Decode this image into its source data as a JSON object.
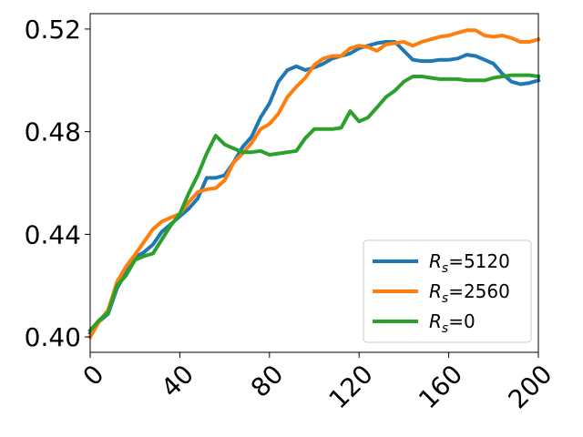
{
  "chart_data": {
    "type": "line",
    "title": "",
    "xlabel": "",
    "ylabel": "",
    "xlim": [
      0,
      200
    ],
    "ylim": [
      0.394,
      0.526
    ],
    "xticks": [
      0,
      40,
      80,
      120,
      160,
      200
    ],
    "xtick_labels": [
      "0",
      "40",
      "80",
      "120",
      "160",
      "200"
    ],
    "yticks": [
      0.4,
      0.44,
      0.48,
      0.52
    ],
    "ytick_labels": [
      "0.40",
      "0.44",
      "0.48",
      "0.52"
    ],
    "grid": false,
    "legend_position": "lower-right",
    "series": [
      {
        "name": "R_s=5120",
        "legend_main": "R",
        "legend_sub": "s",
        "legend_value": "=5120",
        "color": "#1f77b4",
        "x": [
          0,
          4,
          8,
          12,
          16,
          20,
          24,
          28,
          32,
          36,
          40,
          44,
          48,
          52,
          56,
          60,
          64,
          68,
          72,
          76,
          80,
          84,
          88,
          92,
          96,
          100,
          104,
          108,
          112,
          116,
          120,
          124,
          128,
          132,
          136,
          140,
          144,
          148,
          152,
          156,
          160,
          164,
          168,
          172,
          176,
          180,
          184,
          188,
          192,
          196,
          200
        ],
        "y": [
          0.4015,
          0.406,
          0.409,
          0.419,
          0.425,
          0.431,
          0.433,
          0.436,
          0.441,
          0.444,
          0.447,
          0.45,
          0.454,
          0.462,
          0.462,
          0.463,
          0.468,
          0.474,
          0.478,
          0.4855,
          0.491,
          0.4995,
          0.504,
          0.5055,
          0.504,
          0.505,
          0.5065,
          0.5085,
          0.5095,
          0.5105,
          0.5125,
          0.5135,
          0.5145,
          0.515,
          0.515,
          0.5115,
          0.508,
          0.5075,
          0.5075,
          0.508,
          0.508,
          0.5085,
          0.51,
          0.5095,
          0.508,
          0.5065,
          0.5025,
          0.4995,
          0.4985,
          0.499,
          0.5
        ]
      },
      {
        "name": "R_s=2560",
        "legend_main": "R",
        "legend_sub": "s",
        "legend_value": "=2560",
        "color": "#ff7f0e",
        "x": [
          0,
          4,
          8,
          12,
          16,
          20,
          24,
          28,
          32,
          36,
          40,
          44,
          48,
          52,
          56,
          60,
          64,
          68,
          72,
          76,
          80,
          84,
          88,
          92,
          96,
          100,
          104,
          108,
          112,
          116,
          120,
          124,
          128,
          132,
          136,
          140,
          144,
          148,
          152,
          156,
          160,
          164,
          168,
          172,
          176,
          180,
          184,
          188,
          192,
          196,
          200
        ],
        "y": [
          0.4,
          0.406,
          0.4105,
          0.4215,
          0.4275,
          0.432,
          0.437,
          0.442,
          0.445,
          0.4465,
          0.448,
          0.4525,
          0.4565,
          0.4575,
          0.458,
          0.461,
          0.468,
          0.4715,
          0.4755,
          0.481,
          0.483,
          0.487,
          0.4935,
          0.4975,
          0.501,
          0.506,
          0.5085,
          0.5095,
          0.5095,
          0.5125,
          0.5135,
          0.513,
          0.5115,
          0.514,
          0.5145,
          0.515,
          0.5135,
          0.515,
          0.516,
          0.517,
          0.5175,
          0.5185,
          0.5195,
          0.5195,
          0.5175,
          0.517,
          0.5175,
          0.5165,
          0.515,
          0.515,
          0.516
        ]
      },
      {
        "name": "R_s=0",
        "legend_main": "R",
        "legend_sub": "s",
        "legend_value": "=0",
        "color": "#2ca02c",
        "x": [
          0,
          4,
          8,
          12,
          16,
          20,
          24,
          28,
          32,
          36,
          40,
          44,
          48,
          52,
          56,
          60,
          64,
          68,
          72,
          76,
          80,
          84,
          88,
          92,
          96,
          100,
          104,
          108,
          112,
          116,
          120,
          124,
          128,
          132,
          136,
          140,
          144,
          148,
          152,
          156,
          160,
          164,
          168,
          172,
          176,
          180,
          184,
          188,
          192,
          196,
          200
        ],
        "y": [
          0.4025,
          0.4065,
          0.4095,
          0.42,
          0.424,
          0.43,
          0.4315,
          0.4325,
          0.438,
          0.4435,
          0.448,
          0.456,
          0.463,
          0.4715,
          0.4785,
          0.475,
          0.4735,
          0.472,
          0.472,
          0.4725,
          0.471,
          0.4715,
          0.472,
          0.4725,
          0.4775,
          0.481,
          0.481,
          0.481,
          0.4815,
          0.488,
          0.484,
          0.4855,
          0.4895,
          0.4935,
          0.496,
          0.4995,
          0.5015,
          0.5015,
          0.501,
          0.5005,
          0.5005,
          0.5005,
          0.5,
          0.5,
          0.5,
          0.501,
          0.5015,
          0.502,
          0.502,
          0.502,
          0.5015
        ]
      }
    ]
  }
}
